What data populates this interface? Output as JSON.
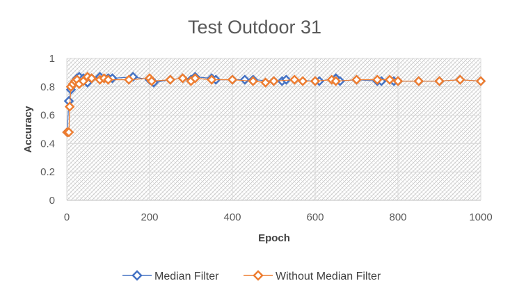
{
  "chart_data": {
    "type": "scatter",
    "title": "Test Outdoor 31",
    "xlabel": "Epoch",
    "ylabel": "Accuracy",
    "xlim": [
      0,
      1000
    ],
    "ylim": [
      0,
      1
    ],
    "xticks": [
      "0",
      "200",
      "400",
      "600",
      "800",
      "1000"
    ],
    "yticks": [
      "0",
      "0.2",
      "0.4",
      "0.6",
      "0.8",
      "1"
    ],
    "grid": true,
    "plot_background": "hatched",
    "legend_position": "bottom",
    "series": [
      {
        "name": "Median Filter",
        "color": "#4472C4",
        "marker": "diamond-open",
        "x": [
          1,
          5,
          10,
          15,
          20,
          25,
          30,
          40,
          50,
          60,
          80,
          100,
          110,
          160,
          200,
          210,
          250,
          280,
          300,
          310,
          350,
          360,
          400,
          430,
          450,
          500,
          520,
          530,
          600,
          610,
          650,
          660,
          700,
          750,
          760,
          790,
          800,
          850,
          900,
          950,
          1000
        ],
        "y": [
          0.48,
          0.7,
          0.78,
          0.82,
          0.84,
          0.86,
          0.87,
          0.86,
          0.83,
          0.86,
          0.87,
          0.86,
          0.86,
          0.87,
          0.85,
          0.83,
          0.85,
          0.86,
          0.85,
          0.87,
          0.86,
          0.85,
          0.85,
          0.85,
          0.85,
          0.84,
          0.84,
          0.85,
          0.84,
          0.84,
          0.86,
          0.84,
          0.85,
          0.84,
          0.84,
          0.84,
          0.84,
          0.84,
          0.84,
          0.85,
          0.84
        ]
      },
      {
        "name": "Without Median Filter",
        "color": "#ED7D31",
        "marker": "diamond-open",
        "x": [
          1,
          5,
          7,
          10,
          15,
          20,
          25,
          30,
          40,
          50,
          60,
          80,
          90,
          100,
          150,
          200,
          205,
          250,
          280,
          300,
          310,
          350,
          400,
          450,
          480,
          500,
          550,
          570,
          600,
          640,
          650,
          700,
          750,
          780,
          800,
          850,
          900,
          950,
          1000
        ],
        "y": [
          0.48,
          0.48,
          0.66,
          0.8,
          0.82,
          0.84,
          0.85,
          0.82,
          0.84,
          0.87,
          0.86,
          0.85,
          0.86,
          0.85,
          0.85,
          0.86,
          0.84,
          0.85,
          0.86,
          0.84,
          0.86,
          0.85,
          0.85,
          0.84,
          0.83,
          0.84,
          0.85,
          0.84,
          0.84,
          0.85,
          0.84,
          0.85,
          0.85,
          0.85,
          0.84,
          0.84,
          0.84,
          0.85,
          0.84
        ]
      }
    ]
  }
}
